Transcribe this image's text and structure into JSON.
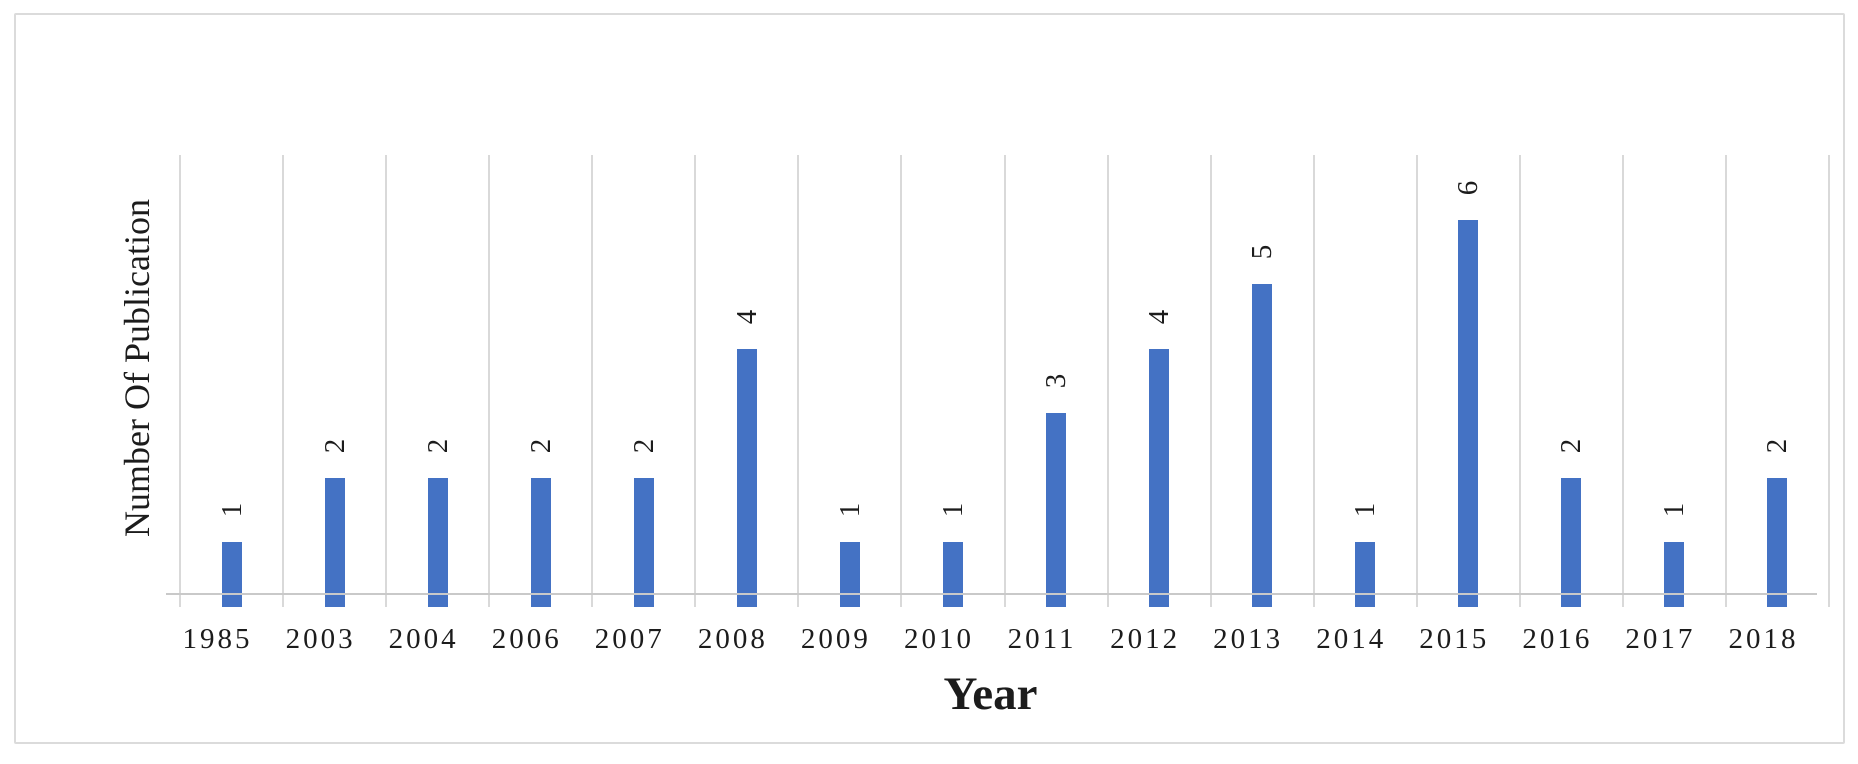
{
  "chart_data": {
    "type": "bar",
    "title": "",
    "categories": [
      "1985",
      "2003",
      "2004",
      "2006",
      "2007",
      "2008",
      "2009",
      "2010",
      "2011",
      "2012",
      "2013",
      "2014",
      "2015",
      "2016",
      "2017",
      "2018"
    ],
    "values": [
      1,
      2,
      2,
      2,
      2,
      4,
      1,
      1,
      3,
      4,
      5,
      1,
      6,
      2,
      1,
      2
    ],
    "xlabel": "Year",
    "ylabel": "Number Of Publication",
    "ylim": [
      0,
      7
    ],
    "y_axis_ticks_visible": false,
    "grid": "vertical category separator lines only",
    "legend": {
      "show": false
    },
    "data_labels": {
      "show": true,
      "rotation_deg": -90,
      "position": "above-bar"
    },
    "colors": {
      "bar": "#4472c4",
      "gridline": "#d9d9d9",
      "axis_line": "#c9c9c9",
      "frame_border": "#dbdbdb",
      "text": "#1c1c1c",
      "background": "#ffffff"
    }
  }
}
